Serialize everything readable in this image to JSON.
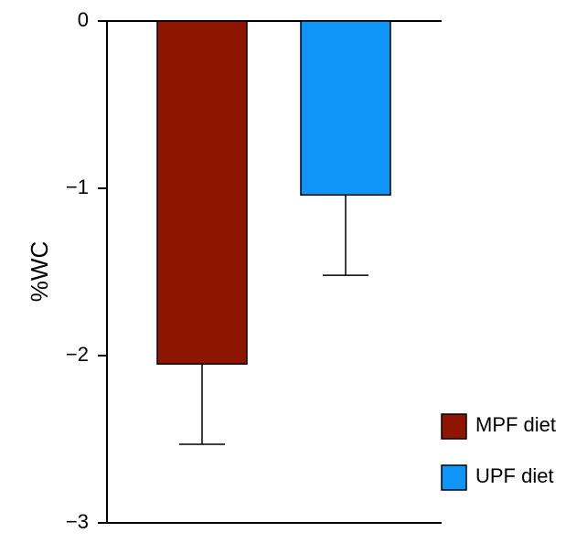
{
  "chart_data": {
    "type": "bar",
    "ylabel": "%WC",
    "categories": [
      null,
      null
    ],
    "series": [
      {
        "name": "MPF diet",
        "color": "#8e1500",
        "values": [
          -2.05,
          null
        ],
        "errors": [
          0.48,
          null
        ]
      },
      {
        "name": "UPF diet",
        "color": "#0f95f5",
        "values": [
          null,
          -1.04
        ],
        "errors": [
          null,
          0.48
        ]
      }
    ],
    "ylim": [
      -3,
      0
    ],
    "yticks": [
      0,
      {
        "value": -1,
        "label": "−1"
      },
      {
        "value": -2,
        "label": "−2"
      },
      {
        "value": -3,
        "label": "−3"
      }
    ],
    "legend": "lower right"
  }
}
